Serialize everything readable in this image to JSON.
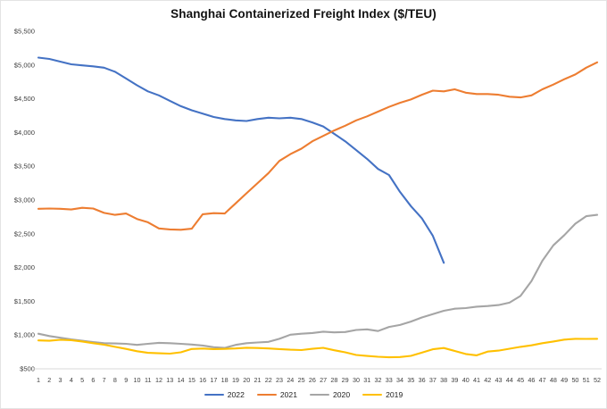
{
  "title": "Shanghai Containerized Freight Index ($/TEU)",
  "colors": {
    "axis_line": "#d9d9d9",
    "tick_label": "#404040",
    "series_2022": "#4472C4",
    "series_2021": "#ED7D31",
    "series_2020": "#A5A5A5",
    "series_2019": "#FFC000"
  },
  "chart_data": {
    "type": "line",
    "title": "Shanghai Containerized Freight Index ($/TEU)",
    "xlabel": "",
    "ylabel": "",
    "ylim": [
      500,
      5500
    ],
    "ytick_step": 500,
    "ytick_labels": [
      "$500",
      "$1,000",
      "$1,500",
      "$2,000",
      "$2,500",
      "$3,000",
      "$3,500",
      "$4,000",
      "$4,500",
      "$5,000",
      "$5,500"
    ],
    "grid": false,
    "legend_position": "bottom",
    "x": [
      1,
      2,
      3,
      4,
      5,
      6,
      7,
      8,
      9,
      10,
      11,
      12,
      13,
      14,
      15,
      16,
      17,
      18,
      19,
      20,
      21,
      22,
      23,
      24,
      25,
      26,
      27,
      28,
      29,
      30,
      31,
      32,
      33,
      34,
      35,
      36,
      37,
      38,
      39,
      40,
      41,
      42,
      43,
      44,
      45,
      46,
      47,
      48,
      49,
      50,
      51,
      52
    ],
    "series": [
      {
        "name": "2022",
        "color": "#4472C4",
        "values": [
          5110,
          5090,
          5050,
          5010,
          4995,
          4980,
          4960,
          4900,
          4800,
          4700,
          4610,
          4550,
          4470,
          4390,
          4330,
          4280,
          4230,
          4200,
          4180,
          4170,
          4200,
          4220,
          4210,
          4220,
          4200,
          4150,
          4090,
          3980,
          3870,
          3740,
          3610,
          3460,
          3370,
          3120,
          2910,
          2730,
          2470,
          2070
        ]
      },
      {
        "name": "2021",
        "color": "#ED7D31",
        "values": [
          2870,
          2875,
          2870,
          2860,
          2885,
          2875,
          2810,
          2780,
          2800,
          2720,
          2670,
          2580,
          2565,
          2560,
          2575,
          2790,
          2805,
          2800,
          2950,
          3100,
          3250,
          3400,
          3580,
          3680,
          3760,
          3870,
          3950,
          4030,
          4100,
          4180,
          4240,
          4310,
          4380,
          4440,
          4490,
          4560,
          4620,
          4610,
          4640,
          4590,
          4570,
          4570,
          4560,
          4530,
          4520,
          4550,
          4640,
          4710,
          4790,
          4860,
          4960,
          5040
        ]
      },
      {
        "name": "2020",
        "color": "#A5A5A5",
        "values": [
          1020,
          985,
          960,
          935,
          915,
          895,
          880,
          875,
          870,
          855,
          870,
          885,
          880,
          870,
          860,
          845,
          820,
          810,
          855,
          880,
          890,
          900,
          945,
          1005,
          1020,
          1030,
          1050,
          1040,
          1045,
          1075,
          1085,
          1060,
          1120,
          1150,
          1200,
          1260,
          1310,
          1360,
          1390,
          1400,
          1420,
          1430,
          1445,
          1480,
          1580,
          1800,
          2100,
          2330,
          2480,
          2650,
          2760,
          2780
        ]
      },
      {
        "name": "2019",
        "color": "#FFC000",
        "values": [
          920,
          915,
          930,
          925,
          905,
          880,
          857,
          825,
          795,
          760,
          737,
          730,
          725,
          745,
          793,
          800,
          792,
          795,
          801,
          812,
          808,
          801,
          792,
          783,
          778,
          796,
          811,
          775,
          745,
          705,
          690,
          678,
          670,
          675,
          692,
          740,
          790,
          808,
          765,
          720,
          700,
          755,
          770,
          798,
          825,
          848,
          880,
          905,
          932,
          945,
          943,
          945
        ]
      }
    ]
  }
}
